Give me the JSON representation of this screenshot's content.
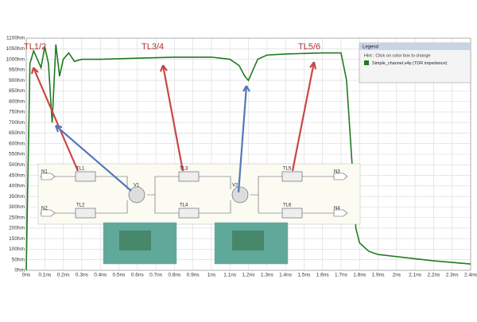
{
  "chart_data": {
    "type": "line",
    "x": [
      0,
      0.02,
      0.04,
      0.06,
      0.08,
      0.1,
      0.12,
      0.14,
      0.16,
      0.18,
      0.2,
      0.23,
      0.26,
      0.3,
      0.4,
      0.6,
      0.8,
      1.0,
      1.1,
      1.15,
      1.18,
      1.2,
      1.22,
      1.25,
      1.3,
      1.4,
      1.6,
      1.7,
      1.73,
      1.76,
      1.78,
      1.8,
      1.85,
      1.9,
      2.0,
      2.2,
      2.4
    ],
    "series": [
      {
        "name": "Simple_channel.s4p (TDR impedance)",
        "color": "#1f7a1f",
        "values": [
          0,
          980,
          1040,
          1000,
          960,
          1060,
          980,
          700,
          1070,
          920,
          1000,
          1030,
          990,
          1000,
          1000,
          1005,
          1010,
          1010,
          1000,
          970,
          920,
          900,
          940,
          1000,
          1020,
          1025,
          1030,
          1030,
          900,
          500,
          200,
          130,
          90,
          75,
          65,
          45,
          30
        ]
      }
    ],
    "xlim": [
      0,
      2.4
    ],
    "xticks": [
      {
        "value": 0,
        "label": "0ns"
      },
      {
        "value": 0.1,
        "label": "0.1ns"
      },
      {
        "value": 0.2,
        "label": "0.2ns"
      },
      {
        "value": 0.3,
        "label": "0.3ns"
      },
      {
        "value": 0.4,
        "label": "0.4ns"
      },
      {
        "value": 0.5,
        "label": "0.5ns"
      },
      {
        "value": 0.6,
        "label": "0.6ns"
      },
      {
        "value": 0.7,
        "label": "0.7ns"
      },
      {
        "value": 0.8,
        "label": "0.8ns"
      },
      {
        "value": 0.9,
        "label": "0.9ns"
      },
      {
        "value": 1.0,
        "label": "1ns"
      },
      {
        "value": 1.1,
        "label": "1.1ns"
      },
      {
        "value": 1.2,
        "label": "1.2ns"
      },
      {
        "value": 1.3,
        "label": "1.3ns"
      },
      {
        "value": 1.4,
        "label": "1.4ns"
      },
      {
        "value": 1.5,
        "label": "1.5ns"
      },
      {
        "value": 1.6,
        "label": "1.6ns"
      },
      {
        "value": 1.7,
        "label": "1.7ns"
      },
      {
        "value": 1.8,
        "label": "1.8ns"
      },
      {
        "value": 1.9,
        "label": "1.9ns"
      },
      {
        "value": 2.0,
        "label": "2ns"
      },
      {
        "value": 2.1,
        "label": "2.1ns"
      },
      {
        "value": 2.2,
        "label": "2.2ns"
      },
      {
        "value": 2.3,
        "label": "2.3ns"
      },
      {
        "value": 2.4,
        "label": "2.4ns"
      }
    ],
    "ylim": [
      0,
      1100
    ],
    "yticks": [
      {
        "value": 0,
        "label": "0hm"
      },
      {
        "value": 50,
        "label": "50hm"
      },
      {
        "value": 100,
        "label": "100hm"
      },
      {
        "value": 150,
        "label": "150hm"
      },
      {
        "value": 200,
        "label": "200hm"
      },
      {
        "value": 250,
        "label": "250hm"
      },
      {
        "value": 300,
        "label": "300hm"
      },
      {
        "value": 350,
        "label": "350hm"
      },
      {
        "value": 400,
        "label": "400hm"
      },
      {
        "value": 450,
        "label": "450hm"
      },
      {
        "value": 500,
        "label": "500hm"
      },
      {
        "value": 550,
        "label": "550hm"
      },
      {
        "value": 600,
        "label": "600hm"
      },
      {
        "value": 650,
        "label": "650hm"
      },
      {
        "value": 700,
        "label": "700hm"
      },
      {
        "value": 750,
        "label": "750hm"
      },
      {
        "value": 800,
        "label": "800hm"
      },
      {
        "value": 850,
        "label": "850hm"
      },
      {
        "value": 900,
        "label": "900hm"
      },
      {
        "value": 950,
        "label": "950hm"
      },
      {
        "value": 1000,
        "label": "1000hm"
      },
      {
        "value": 1050,
        "label": "1050hm"
      },
      {
        "value": 1100,
        "label": "1100hm"
      }
    ],
    "grid": true,
    "annotations": [
      "TL1/2",
      "TL3/4",
      "TL5/6"
    ],
    "legend": {
      "title": "Legend",
      "hint": "Hint : Click on color box to change"
    },
    "schematic": {
      "labels": [
        "N1",
        "N2",
        "TL1",
        "TL2",
        "V1",
        "TL3",
        "TL4",
        "V2",
        "TL5",
        "TL6",
        "N3",
        "N4"
      ]
    }
  }
}
